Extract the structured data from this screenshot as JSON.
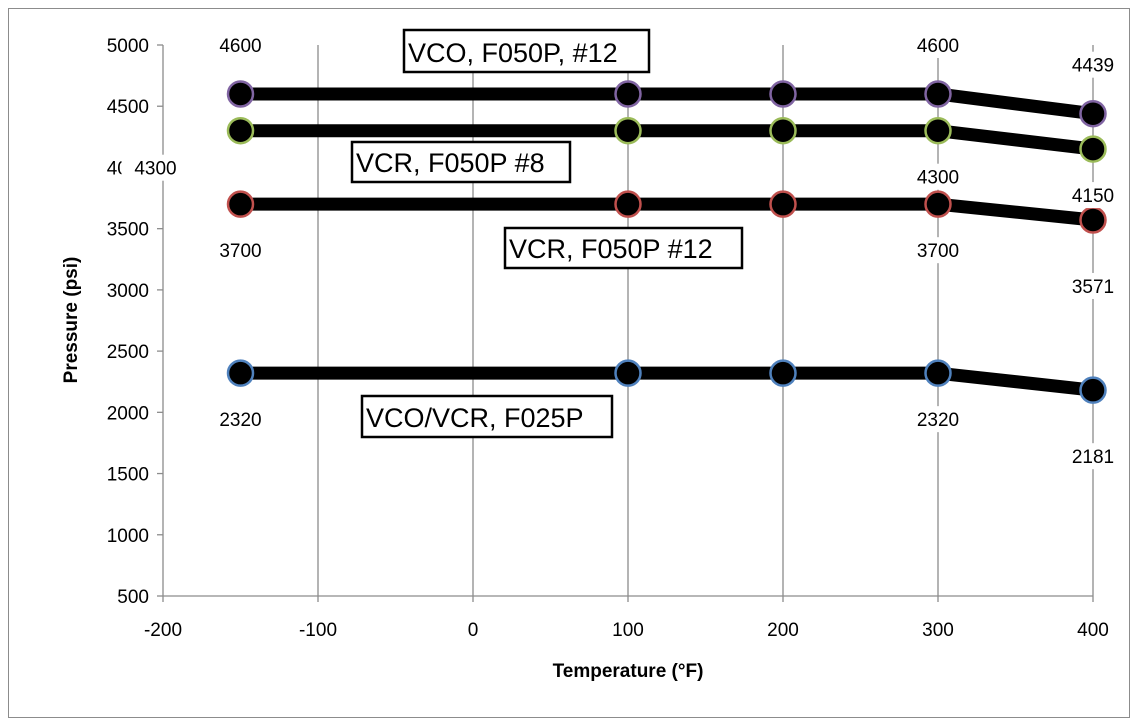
{
  "chart_data": {
    "type": "line",
    "xlabel": "Temperature (°F)",
    "ylabel": "Pressure (psi)",
    "xlim": [
      -200,
      400
    ],
    "ylim": [
      500,
      5000
    ],
    "x_ticks": [
      -200,
      -100,
      0,
      100,
      200,
      300,
      400
    ],
    "y_ticks": [
      500,
      1000,
      1500,
      2000,
      2500,
      3000,
      3500,
      4000,
      4500,
      5000
    ],
    "grid": "vertical",
    "legend": "none",
    "series": [
      {
        "name": "VCO, F050P, #12",
        "marker_color": "#8064a2",
        "x": [
          -150,
          100,
          200,
          300,
          400
        ],
        "y": [
          4600,
          4600,
          4600,
          4600,
          4439
        ],
        "data_labels": [
          {
            "x": -150,
            "y": 4600,
            "text": "4600"
          },
          {
            "x": 300,
            "y": 4600,
            "text": "4600"
          },
          {
            "x": 400,
            "y": 4439,
            "text": "4439"
          }
        ]
      },
      {
        "name": "VCR, F050P #8",
        "marker_color": "#9bbb59",
        "x": [
          -150,
          100,
          200,
          300,
          400
        ],
        "y": [
          4300,
          4300,
          4300,
          4300,
          4150
        ],
        "data_labels": [
          {
            "x": -150,
            "y": 4300,
            "text": "4300"
          },
          {
            "x": 300,
            "y": 4300,
            "text": "4300"
          },
          {
            "x": 400,
            "y": 4150,
            "text": "4150"
          }
        ]
      },
      {
        "name": "VCR, F050P #12",
        "marker_color": "#c0504d",
        "x": [
          -150,
          100,
          200,
          300,
          400
        ],
        "y": [
          3700,
          3700,
          3700,
          3700,
          3571
        ],
        "data_labels": [
          {
            "x": -150,
            "y": 3700,
            "text": "3700"
          },
          {
            "x": 300,
            "y": 3700,
            "text": "3700"
          },
          {
            "x": 400,
            "y": 3571,
            "text": "3571"
          }
        ]
      },
      {
        "name": "VCO/VCR, F025P",
        "marker_color": "#4f81bd",
        "x": [
          -150,
          100,
          200,
          300,
          400
        ],
        "y": [
          2320,
          2320,
          2320,
          2320,
          2181
        ],
        "data_labels": [
          {
            "x": -150,
            "y": 2320,
            "text": "2320"
          },
          {
            "x": 300,
            "y": 2320,
            "text": "2320"
          },
          {
            "x": 400,
            "y": 2181,
            "text": "2181"
          }
        ]
      }
    ],
    "callouts": [
      {
        "text": "VCO, F050P, #12",
        "series": 0
      },
      {
        "text": "VCR, F050P #8",
        "series": 1
      },
      {
        "text": "VCR, F050P #12",
        "series": 2
      },
      {
        "text": "VCO/VCR, F025P",
        "series": 3
      }
    ]
  }
}
